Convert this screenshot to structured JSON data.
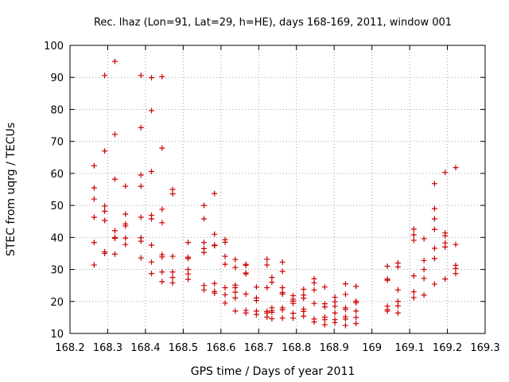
{
  "chart_data": {
    "type": "scatter",
    "title": "Rec. lhaz (Lon=91, Lat=29, h=HE), days 168-169, 2011, window 001",
    "xlabel": "GPS time / Days of year 2011",
    "ylabel": "STEC from uqrg / TECUs",
    "xlim": [
      168.2,
      169.3
    ],
    "ylim": [
      10,
      100
    ],
    "x_ticks": [
      168.2,
      168.3,
      168.4,
      168.5,
      168.6,
      168.7,
      168.8,
      168.9,
      169,
      169.1,
      169.2,
      169.3
    ],
    "x_tick_labels": [
      "168.2",
      "168.3",
      "168.4",
      "168.5",
      "168.6",
      "168.7",
      "168.8",
      "168.9",
      "169",
      "169.1",
      "169.2",
      "169.3"
    ],
    "y_ticks": [
      10,
      20,
      30,
      40,
      50,
      60,
      70,
      80,
      90,
      100
    ],
    "y_tick_labels": [
      "10",
      "20",
      "30",
      "40",
      "50",
      "60",
      "70",
      "80",
      "90",
      "100"
    ],
    "grid": true,
    "marker": "+",
    "color": "#cc0000",
    "points": [
      [
        168.264,
        62.4
      ],
      [
        168.264,
        55.5
      ],
      [
        168.264,
        52.0
      ],
      [
        168.264,
        46.3
      ],
      [
        168.264,
        38.4
      ],
      [
        168.264,
        31.4
      ],
      [
        168.292,
        90.6
      ],
      [
        168.292,
        67.0
      ],
      [
        168.292,
        49.8
      ],
      [
        168.292,
        48.2
      ],
      [
        168.292,
        45.3
      ],
      [
        168.292,
        35.5
      ],
      [
        168.292,
        35.0
      ],
      [
        168.319,
        95.0
      ],
      [
        168.319,
        72.2
      ],
      [
        168.319,
        58.2
      ],
      [
        168.319,
        42.1
      ],
      [
        168.319,
        40.0
      ],
      [
        168.319,
        39.7
      ],
      [
        168.319,
        34.8
      ],
      [
        168.347,
        56.0
      ],
      [
        168.347,
        47.3
      ],
      [
        168.347,
        44.2
      ],
      [
        168.347,
        43.6
      ],
      [
        168.347,
        39.8
      ],
      [
        168.347,
        37.8
      ],
      [
        168.388,
        90.6
      ],
      [
        168.388,
        74.3
      ],
      [
        168.388,
        59.5
      ],
      [
        168.388,
        56.0
      ],
      [
        168.388,
        46.3
      ],
      [
        168.388,
        39.9
      ],
      [
        168.388,
        38.8
      ],
      [
        168.388,
        33.6
      ],
      [
        168.416,
        89.9
      ],
      [
        168.416,
        79.6
      ],
      [
        168.416,
        60.6
      ],
      [
        168.416,
        46.9
      ],
      [
        168.416,
        45.8
      ],
      [
        168.416,
        37.6
      ],
      [
        168.416,
        32.3
      ],
      [
        168.416,
        28.7
      ],
      [
        168.444,
        90.2
      ],
      [
        168.444,
        67.9
      ],
      [
        168.444,
        48.8
      ],
      [
        168.444,
        44.6
      ],
      [
        168.444,
        34.6
      ],
      [
        168.444,
        33.9
      ],
      [
        168.444,
        29.2
      ],
      [
        168.444,
        26.2
      ],
      [
        168.472,
        55.0
      ],
      [
        168.472,
        53.6
      ],
      [
        168.472,
        34.1
      ],
      [
        168.472,
        29.2
      ],
      [
        168.472,
        27.5
      ],
      [
        168.472,
        25.8
      ],
      [
        168.513,
        38.4
      ],
      [
        168.513,
        33.8
      ],
      [
        168.513,
        33.4
      ],
      [
        168.513,
        30.0
      ],
      [
        168.513,
        28.6
      ],
      [
        168.513,
        26.9
      ],
      [
        168.555,
        50.0
      ],
      [
        168.555,
        45.8
      ],
      [
        168.555,
        38.4
      ],
      [
        168.555,
        36.5
      ],
      [
        168.555,
        35.3
      ],
      [
        168.555,
        25.0
      ],
      [
        168.555,
        23.6
      ],
      [
        168.583,
        53.7
      ],
      [
        168.583,
        41.0
      ],
      [
        168.583,
        37.6
      ],
      [
        168.583,
        37.4
      ],
      [
        168.583,
        25.6
      ],
      [
        168.583,
        23.1
      ],
      [
        168.583,
        22.6
      ],
      [
        168.611,
        39.3
      ],
      [
        168.611,
        38.5
      ],
      [
        168.611,
        34.1
      ],
      [
        168.611,
        31.6
      ],
      [
        168.611,
        24.3
      ],
      [
        168.611,
        22.1
      ],
      [
        168.611,
        19.5
      ],
      [
        168.638,
        33.1
      ],
      [
        168.638,
        30.6
      ],
      [
        168.638,
        25.1
      ],
      [
        168.638,
        24.3
      ],
      [
        168.638,
        22.9
      ],
      [
        168.638,
        21.1
      ],
      [
        168.638,
        17.0
      ],
      [
        168.666,
        31.6
      ],
      [
        168.666,
        31.3
      ],
      [
        168.666,
        28.9
      ],
      [
        168.666,
        28.6
      ],
      [
        168.666,
        22.3
      ],
      [
        168.666,
        17.2
      ],
      [
        168.666,
        16.4
      ],
      [
        168.694,
        24.5
      ],
      [
        168.694,
        21.1
      ],
      [
        168.694,
        20.3
      ],
      [
        168.694,
        17.0
      ],
      [
        168.694,
        15.9
      ],
      [
        168.722,
        33.2
      ],
      [
        168.722,
        31.4
      ],
      [
        168.722,
        24.3
      ],
      [
        168.722,
        16.9
      ],
      [
        168.722,
        16.4
      ],
      [
        168.722,
        15.1
      ],
      [
        168.735,
        27.5
      ],
      [
        168.735,
        26.0
      ],
      [
        168.735,
        18.0
      ],
      [
        168.735,
        17.1
      ],
      [
        168.735,
        16.6
      ],
      [
        168.735,
        14.6
      ],
      [
        168.763,
        32.3
      ],
      [
        168.763,
        29.4
      ],
      [
        168.763,
        24.3
      ],
      [
        168.763,
        22.8
      ],
      [
        168.763,
        22.3
      ],
      [
        168.763,
        18.0
      ],
      [
        168.763,
        17.4
      ],
      [
        168.763,
        14.8
      ],
      [
        168.791,
        21.8
      ],
      [
        168.791,
        20.7
      ],
      [
        168.791,
        20.1
      ],
      [
        168.791,
        19.4
      ],
      [
        168.791,
        16.3
      ],
      [
        168.791,
        14.8
      ],
      [
        168.819,
        23.8
      ],
      [
        168.819,
        22.0
      ],
      [
        168.819,
        21.0
      ],
      [
        168.819,
        17.6
      ],
      [
        168.819,
        16.9
      ],
      [
        168.819,
        15.4
      ],
      [
        168.847,
        27.1
      ],
      [
        168.847,
        25.8
      ],
      [
        168.847,
        23.6
      ],
      [
        168.847,
        19.4
      ],
      [
        168.847,
        14.5
      ],
      [
        168.847,
        13.6
      ],
      [
        168.875,
        24.5
      ],
      [
        168.875,
        19.3
      ],
      [
        168.875,
        18.3
      ],
      [
        168.875,
        15.1
      ],
      [
        168.875,
        14.3
      ],
      [
        168.875,
        12.7
      ],
      [
        168.902,
        21.3
      ],
      [
        168.902,
        19.9
      ],
      [
        168.902,
        18.5
      ],
      [
        168.902,
        16.4
      ],
      [
        168.902,
        14.3
      ],
      [
        168.902,
        13.4
      ],
      [
        168.93,
        25.5
      ],
      [
        168.93,
        22.2
      ],
      [
        168.93,
        18.0
      ],
      [
        168.93,
        17.5
      ],
      [
        168.93,
        15.2
      ],
      [
        168.93,
        14.5
      ],
      [
        168.93,
        12.5
      ],
      [
        168.958,
        24.7
      ],
      [
        168.958,
        20.1
      ],
      [
        168.958,
        19.6
      ],
      [
        168.958,
        17.0
      ],
      [
        168.958,
        15.0
      ],
      [
        168.958,
        13.1
      ],
      [
        169.041,
        31.0
      ],
      [
        169.041,
        27.0
      ],
      [
        169.041,
        26.6
      ],
      [
        169.041,
        18.5
      ],
      [
        169.041,
        17.5
      ],
      [
        169.041,
        17.0
      ],
      [
        169.069,
        32.0
      ],
      [
        169.069,
        30.8
      ],
      [
        169.069,
        23.6
      ],
      [
        169.069,
        20.0
      ],
      [
        169.069,
        18.6
      ],
      [
        169.069,
        16.4
      ],
      [
        169.111,
        42.6
      ],
      [
        169.111,
        40.8
      ],
      [
        169.111,
        39.1
      ],
      [
        169.111,
        28.0
      ],
      [
        169.111,
        23.0
      ],
      [
        169.111,
        21.2
      ],
      [
        169.138,
        39.6
      ],
      [
        169.138,
        32.8
      ],
      [
        169.138,
        30.0
      ],
      [
        169.138,
        27.2
      ],
      [
        169.138,
        22.0
      ],
      [
        169.166,
        56.8
      ],
      [
        169.166,
        49.0
      ],
      [
        169.166,
        45.8
      ],
      [
        169.166,
        42.5
      ],
      [
        169.166,
        36.6
      ],
      [
        169.166,
        33.4
      ],
      [
        169.166,
        25.4
      ],
      [
        169.194,
        60.3
      ],
      [
        169.194,
        41.4
      ],
      [
        169.194,
        40.5
      ],
      [
        169.194,
        38.3
      ],
      [
        169.194,
        37.0
      ],
      [
        169.194,
        27.0
      ],
      [
        169.222,
        61.8
      ],
      [
        169.222,
        37.8
      ],
      [
        169.222,
        31.3
      ],
      [
        169.222,
        30.3
      ],
      [
        169.222,
        28.7
      ]
    ]
  }
}
